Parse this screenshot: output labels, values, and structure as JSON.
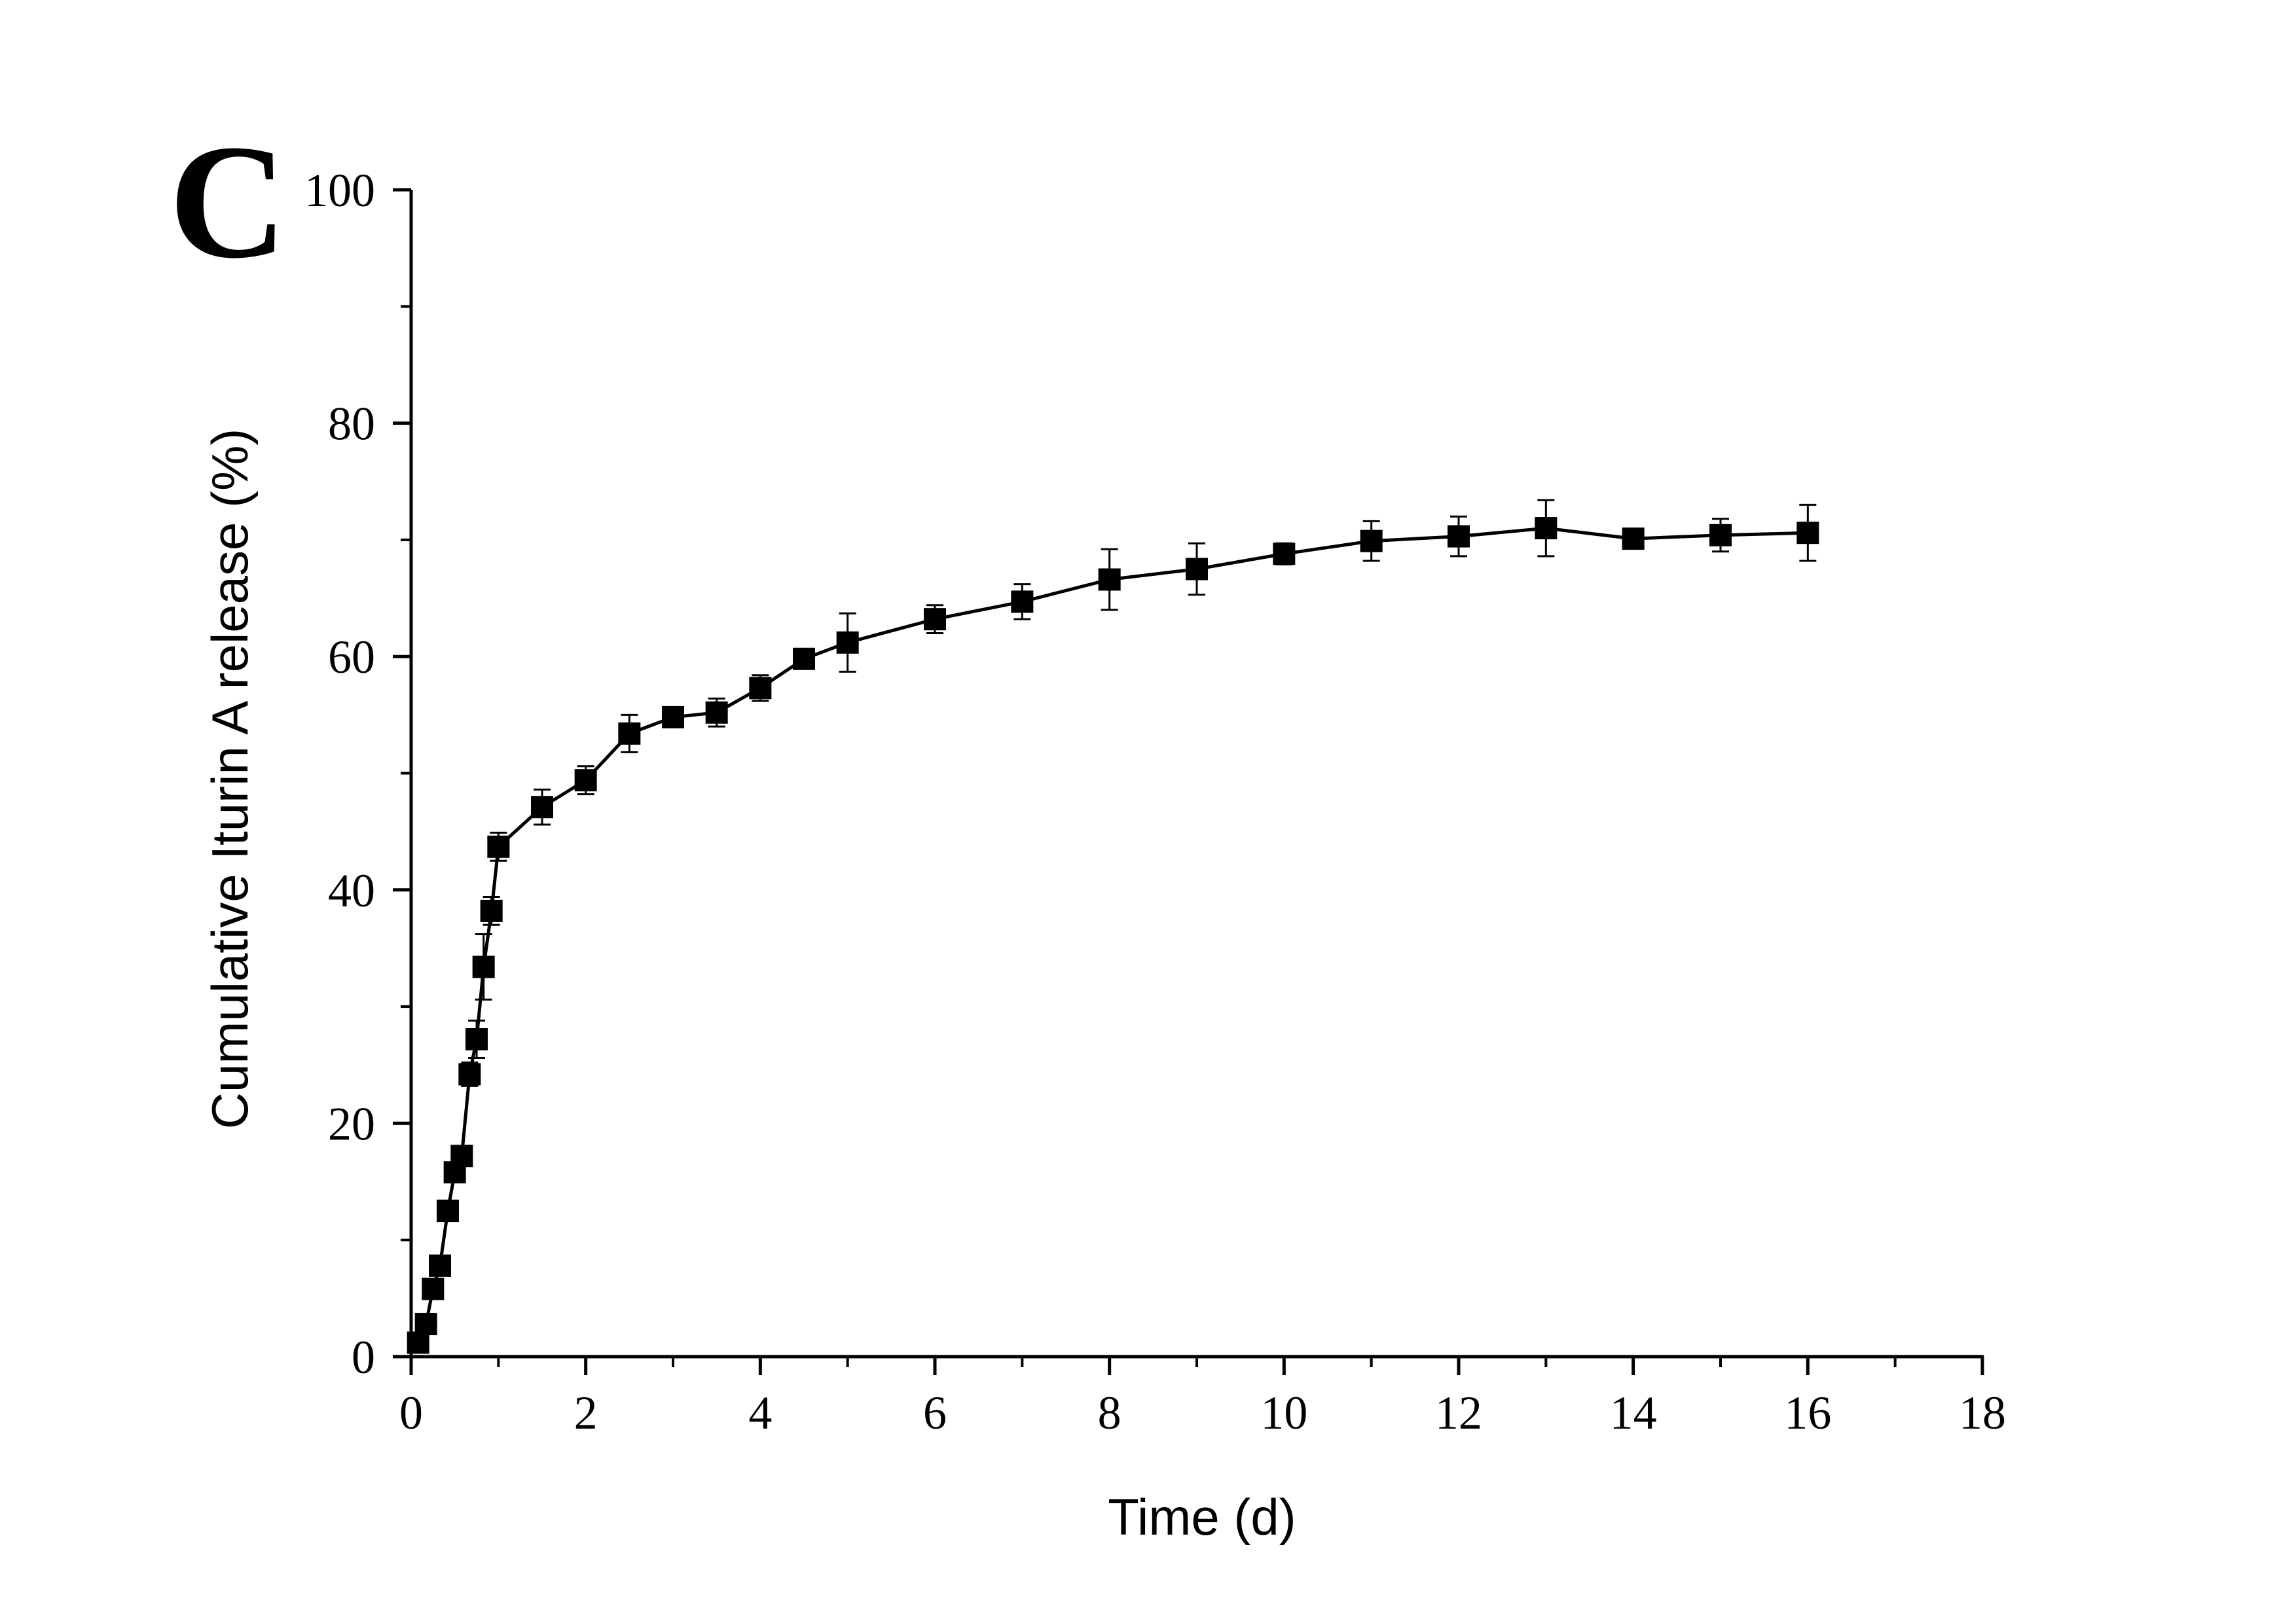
{
  "panel_label": "C",
  "chart_data": {
    "type": "line",
    "title": "",
    "xlabel": "Time (d)",
    "ylabel": "Cumulative Iturin A release (%)",
    "xlim": [
      0,
      18
    ],
    "ylim": [
      0,
      100
    ],
    "x_ticks": [
      0,
      2,
      4,
      6,
      8,
      10,
      12,
      14,
      16,
      18
    ],
    "y_ticks": [
      0,
      20,
      40,
      60,
      80,
      100
    ],
    "x_tick_labels": [
      "0",
      "2",
      "4",
      "6",
      "8",
      "10",
      "12",
      "14",
      "16",
      "18"
    ],
    "y_tick_labels": [
      "0",
      "20",
      "40",
      "60",
      "80",
      "100"
    ],
    "grid": false,
    "legend": "none",
    "series": [
      {
        "name": "Iturin A release",
        "marker": "square",
        "color": "#000000",
        "x": [
          0.08,
          0.17,
          0.25,
          0.33,
          0.42,
          0.5,
          0.58,
          0.67,
          0.75,
          0.83,
          0.92,
          1.0,
          1.5,
          2.0,
          2.5,
          3.0,
          3.5,
          4.0,
          4.5,
          5.0,
          6.0,
          7.0,
          8.0,
          9.0,
          10.0,
          11.0,
          12.0,
          13.0,
          14.0,
          15.0,
          16.0
        ],
        "y": [
          1.2,
          2.8,
          5.8,
          7.8,
          12.5,
          15.8,
          17.2,
          24.2,
          27.2,
          33.4,
          38.2,
          43.7,
          47.1,
          49.4,
          53.4,
          54.8,
          55.2,
          57.3,
          59.8,
          61.2,
          63.2,
          64.7,
          66.6,
          67.5,
          68.8,
          69.9,
          70.3,
          71.0,
          70.1,
          70.4,
          70.6
        ],
        "error": [
          0.3,
          0.5,
          0.8,
          0.8,
          0.8,
          0.8,
          0.8,
          1.0,
          1.6,
          2.8,
          1.2,
          1.2,
          1.5,
          1.2,
          1.6,
          0.4,
          1.2,
          1.1,
          0.5,
          2.5,
          1.2,
          1.5,
          2.6,
          2.2,
          0.9,
          1.7,
          1.7,
          2.4,
          0.5,
          1.4,
          2.4
        ]
      }
    ]
  }
}
